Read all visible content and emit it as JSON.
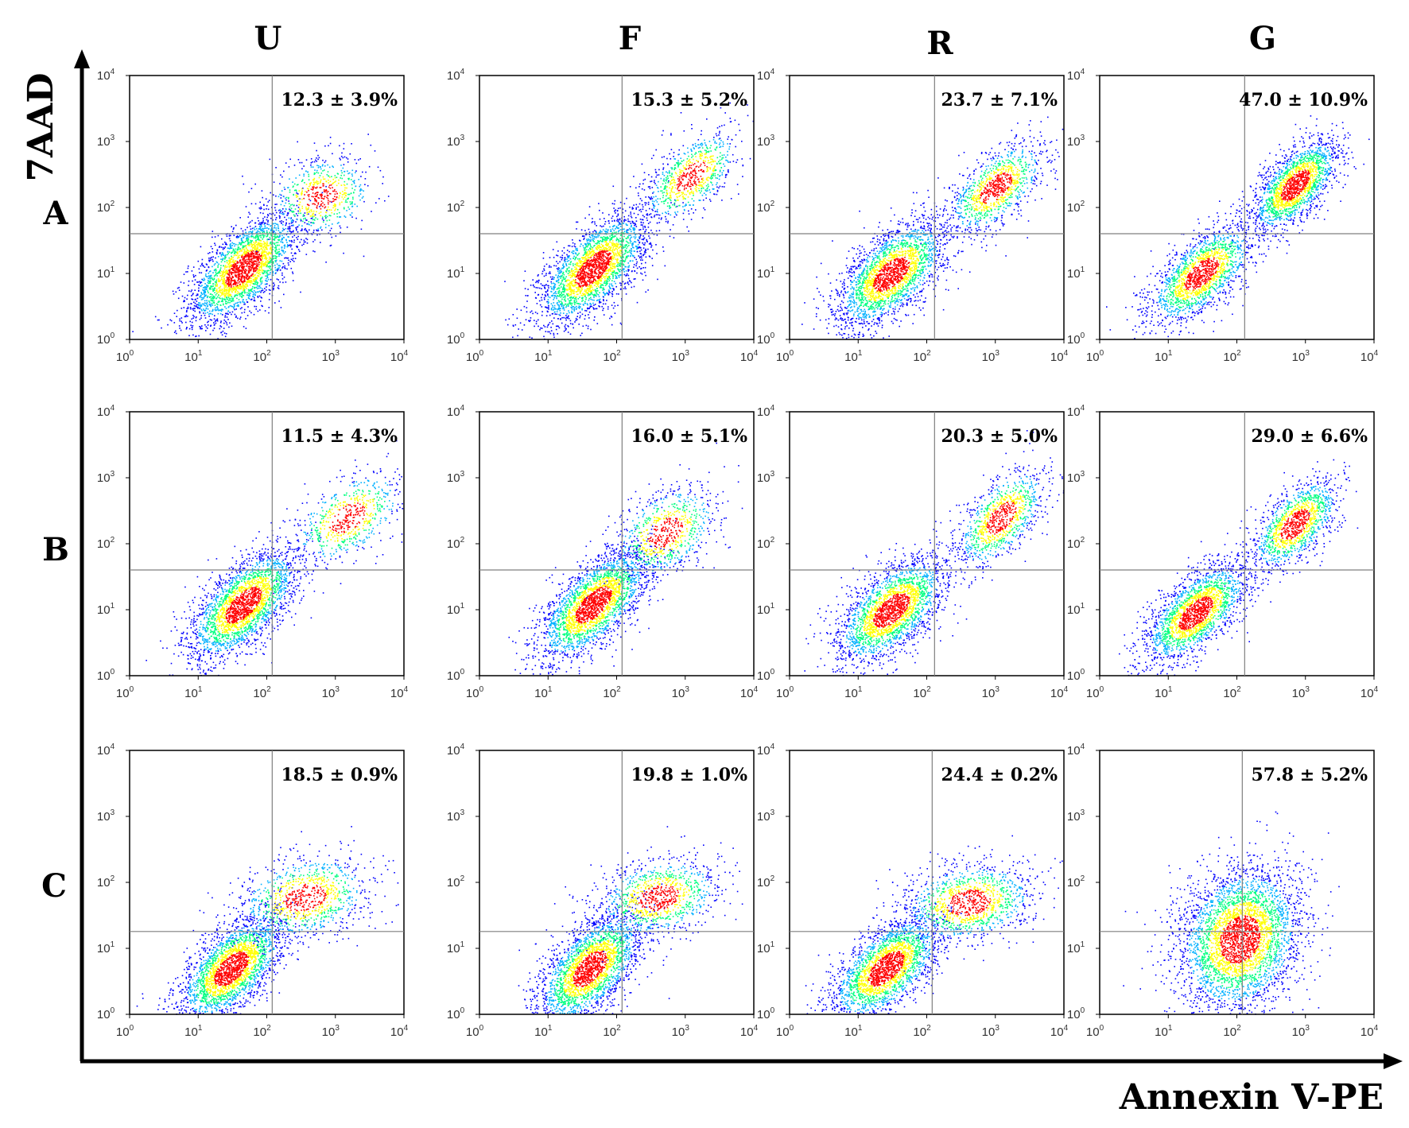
{
  "axis_titles": {
    "y": "7AAD",
    "x": "Annexin V-PE"
  },
  "columns": [
    "U",
    "F",
    "R",
    "G"
  ],
  "rows": [
    "A",
    "B",
    "C"
  ],
  "tick_base": "10",
  "tick_exponents": [
    "0",
    "1",
    "2",
    "3",
    "4"
  ],
  "colors": {
    "axis": "#000000",
    "frame": "#000000",
    "gate": "#7f7f7f",
    "density": [
      "#0000ff",
      "#00b0ff",
      "#00ff80",
      "#ffff00",
      "#ff0000"
    ]
  },
  "chart_data": {
    "type": "scatter",
    "x_scale": "log",
    "y_scale": "log",
    "xlim": [
      1,
      10000
    ],
    "ylim": [
      1,
      10000
    ],
    "panels": [
      {
        "row": "A",
        "col": "U",
        "label": "12.3 ± 3.9%",
        "gate": {
          "x": 120,
          "y": 40
        },
        "clusters": [
          {
            "x": 45,
            "y": 12,
            "sx": 0.4,
            "sy": 0.42,
            "rho": 0.65,
            "n": 2600
          },
          {
            "x": 600,
            "y": 150,
            "sx": 0.38,
            "sy": 0.3,
            "rho": 0.2,
            "n": 650
          }
        ]
      },
      {
        "row": "A",
        "col": "F",
        "label": "15.3 ± 5.2%",
        "gate": {
          "x": 120,
          "y": 40
        },
        "clusters": [
          {
            "x": 45,
            "y": 12,
            "sx": 0.4,
            "sy": 0.42,
            "rho": 0.65,
            "n": 2600
          },
          {
            "x": 1200,
            "y": 300,
            "sx": 0.35,
            "sy": 0.35,
            "rho": 0.6,
            "n": 800
          }
        ]
      },
      {
        "row": "A",
        "col": "R",
        "label": "23.7 ± 7.1%",
        "gate": {
          "x": 130,
          "y": 40
        },
        "clusters": [
          {
            "x": 30,
            "y": 10,
            "sx": 0.4,
            "sy": 0.4,
            "rho": 0.6,
            "n": 2400
          },
          {
            "x": 1000,
            "y": 200,
            "sx": 0.35,
            "sy": 0.35,
            "rho": 0.6,
            "n": 1100
          }
        ]
      },
      {
        "row": "A",
        "col": "G",
        "label": "47.0 ± 10.9%",
        "gate": {
          "x": 130,
          "y": 40
        },
        "clusters": [
          {
            "x": 30,
            "y": 10,
            "sx": 0.38,
            "sy": 0.38,
            "rho": 0.65,
            "n": 1800
          },
          {
            "x": 700,
            "y": 220,
            "sx": 0.32,
            "sy": 0.36,
            "rho": 0.65,
            "n": 1900
          }
        ]
      },
      {
        "row": "B",
        "col": "U",
        "label": "11.5 ± 4.3%",
        "gate": {
          "x": 120,
          "y": 40
        },
        "clusters": [
          {
            "x": 45,
            "y": 12,
            "sx": 0.4,
            "sy": 0.42,
            "rho": 0.65,
            "n": 2600
          },
          {
            "x": 1500,
            "y": 250,
            "sx": 0.4,
            "sy": 0.35,
            "rho": 0.5,
            "n": 650
          }
        ]
      },
      {
        "row": "B",
        "col": "F",
        "label": "16.0 ± 5.1%",
        "gate": {
          "x": 120,
          "y": 40
        },
        "clusters": [
          {
            "x": 45,
            "y": 12,
            "sx": 0.4,
            "sy": 0.42,
            "rho": 0.65,
            "n": 2600
          },
          {
            "x": 500,
            "y": 150,
            "sx": 0.38,
            "sy": 0.35,
            "rho": 0.4,
            "n": 800
          }
        ]
      },
      {
        "row": "B",
        "col": "R",
        "label": "20.3 ± 5.0%",
        "gate": {
          "x": 130,
          "y": 40
        },
        "clusters": [
          {
            "x": 30,
            "y": 10,
            "sx": 0.4,
            "sy": 0.4,
            "rho": 0.6,
            "n": 2400
          },
          {
            "x": 1200,
            "y": 250,
            "sx": 0.33,
            "sy": 0.38,
            "rho": 0.6,
            "n": 1000
          }
        ]
      },
      {
        "row": "B",
        "col": "G",
        "label": "29.0 ± 6.6%",
        "gate": {
          "x": 130,
          "y": 40
        },
        "clusters": [
          {
            "x": 25,
            "y": 9,
            "sx": 0.38,
            "sy": 0.38,
            "rho": 0.65,
            "n": 2100
          },
          {
            "x": 700,
            "y": 200,
            "sx": 0.32,
            "sy": 0.35,
            "rho": 0.6,
            "n": 1300
          }
        ]
      },
      {
        "row": "C",
        "col": "U",
        "label": "18.5 ± 0.9%",
        "gate": {
          "x": 120,
          "y": 18
        },
        "clusters": [
          {
            "x": 30,
            "y": 5,
            "sx": 0.38,
            "sy": 0.4,
            "rho": 0.6,
            "n": 2600
          },
          {
            "x": 350,
            "y": 60,
            "sx": 0.48,
            "sy": 0.32,
            "rho": 0.25,
            "n": 1000
          }
        ]
      },
      {
        "row": "C",
        "col": "F",
        "label": "19.8 ± 1.0%",
        "gate": {
          "x": 120,
          "y": 18
        },
        "clusters": [
          {
            "x": 40,
            "y": 5,
            "sx": 0.38,
            "sy": 0.42,
            "rho": 0.6,
            "n": 2600
          },
          {
            "x": 400,
            "y": 60,
            "sx": 0.45,
            "sy": 0.3,
            "rho": 0.25,
            "n": 1000
          }
        ]
      },
      {
        "row": "C",
        "col": "R",
        "label": "24.4 ± 0.2%",
        "gate": {
          "x": 120,
          "y": 18
        },
        "clusters": [
          {
            "x": 25,
            "y": 5,
            "sx": 0.4,
            "sy": 0.4,
            "rho": 0.6,
            "n": 2400
          },
          {
            "x": 400,
            "y": 50,
            "sx": 0.48,
            "sy": 0.3,
            "rho": 0.2,
            "n": 1200
          }
        ]
      },
      {
        "row": "C",
        "col": "G",
        "label": "57.8 ± 5.2%",
        "gate": {
          "x": 120,
          "y": 18
        },
        "clusters": [
          {
            "x": 110,
            "y": 14,
            "sx": 0.45,
            "sy": 0.55,
            "rho": 0.2,
            "n": 3600
          }
        ]
      }
    ]
  }
}
